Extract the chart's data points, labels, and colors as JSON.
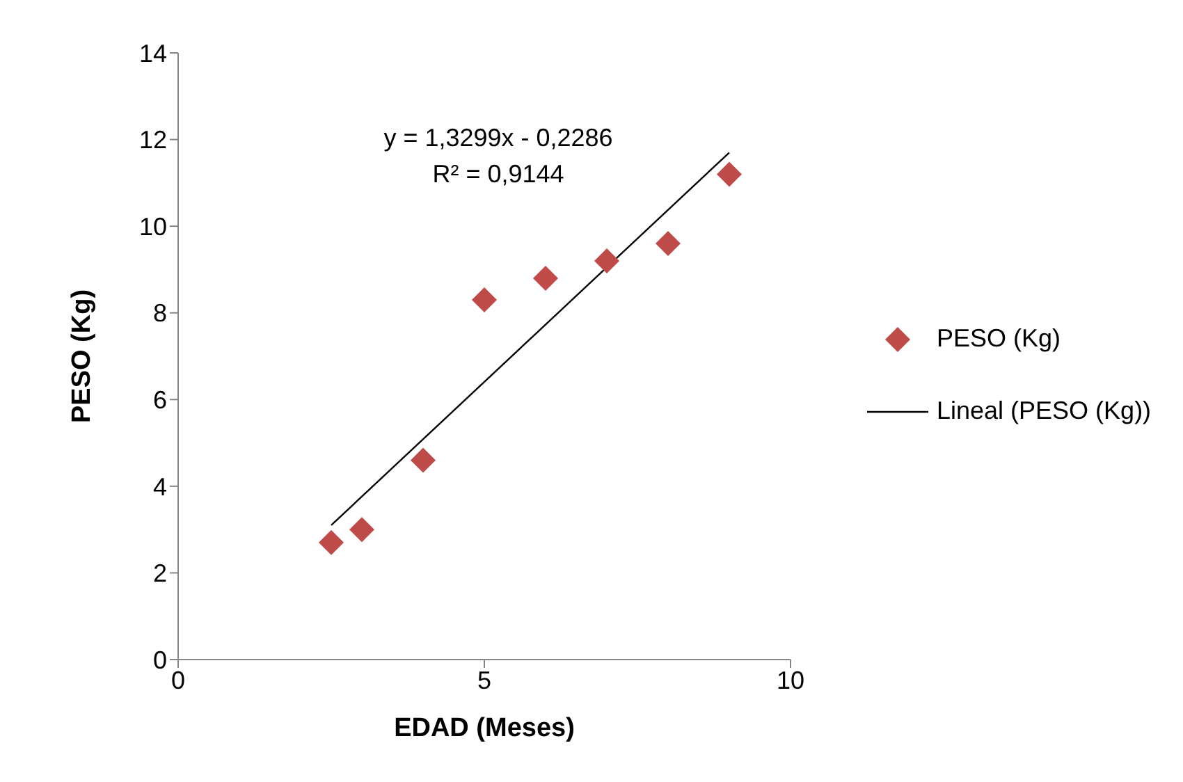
{
  "chart_data": {
    "type": "scatter",
    "xlabel": "EDAD (Meses)",
    "ylabel": "PESO (Kg)",
    "xlim": [
      0,
      10
    ],
    "xticks": [
      0,
      5,
      10
    ],
    "ylim": [
      0,
      14
    ],
    "yticks": [
      0,
      2,
      4,
      6,
      8,
      10,
      12,
      14
    ],
    "grid": false,
    "legend": "right",
    "marker": "diamond",
    "annotations": [
      "y = 1,3299x - 0,2286",
      "R² = 0,9144"
    ],
    "series": [
      {
        "name": "PESO (Kg)",
        "type": "scatter",
        "color": "#be4b48",
        "x": [
          2.5,
          3,
          4,
          5,
          6,
          7,
          8,
          9
        ],
        "values": [
          2.7,
          3.0,
          4.6,
          8.3,
          8.8,
          9.2,
          9.6,
          11.2
        ]
      },
      {
        "name": "Lineal (PESO (Kg))",
        "type": "line",
        "color": "#000000",
        "line_style": "solid",
        "marker": "none",
        "x": [
          2.5,
          9
        ],
        "values": [
          3.1,
          11.7
        ]
      }
    ]
  }
}
